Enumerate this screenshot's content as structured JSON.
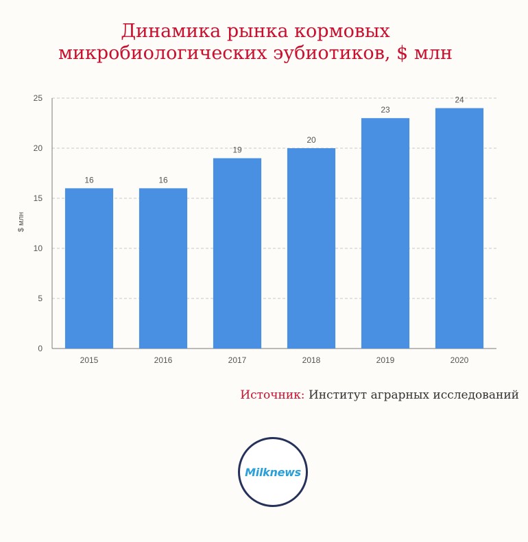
{
  "title_lines": [
    "Динамика рынка кормовых",
    "микробиологических эубиотиков, $ млн"
  ],
  "source": {
    "label": "Источник:",
    "value": "Институт аграрных исследований"
  },
  "logo": {
    "text": "Milknews"
  },
  "colors": {
    "title": "#c8102e",
    "bar": "#4a90e2",
    "logo_ring": "#26315a",
    "logo_text": "#2a9fd8"
  },
  "chart_data": {
    "type": "bar",
    "categories": [
      "2015",
      "2016",
      "2017",
      "2018",
      "2019",
      "2020"
    ],
    "values": [
      16,
      16,
      19,
      20,
      23,
      24
    ],
    "data_labels": [
      "16",
      "16",
      "19",
      "20",
      "23",
      "24"
    ],
    "ylabel": "$ млн",
    "ylim": [
      0,
      25
    ],
    "yticks": [
      0,
      5,
      10,
      15,
      20,
      25
    ],
    "ytick_labels": [
      "0",
      "5",
      "10",
      "15",
      "20",
      "25"
    ],
    "grid": true,
    "legend": "none"
  }
}
